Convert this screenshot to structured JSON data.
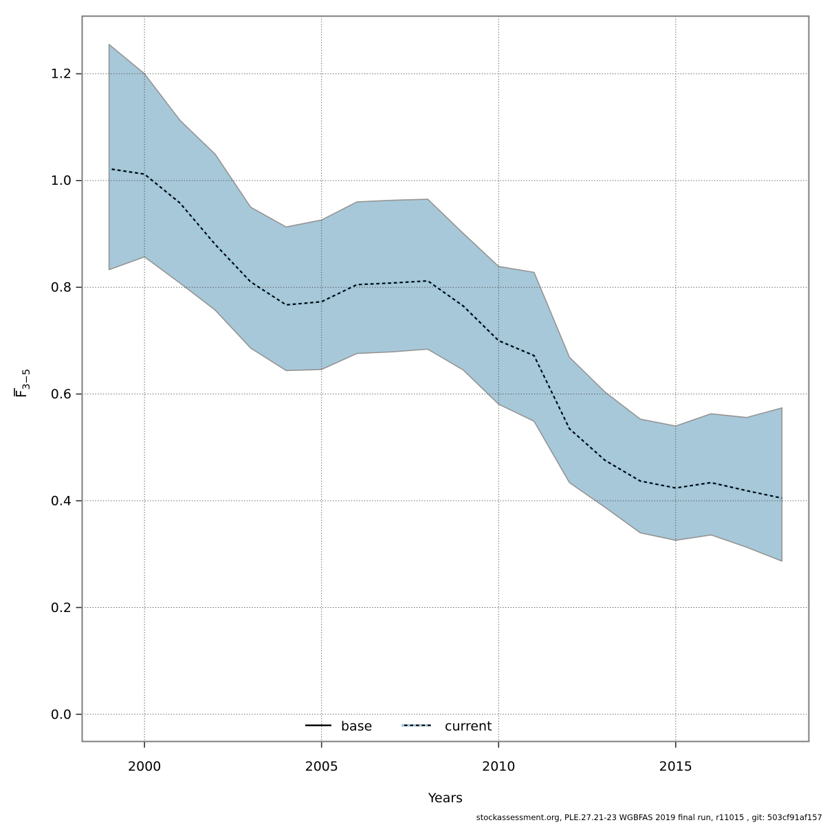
{
  "footer": "stockassessment.org, PLE.27.21-23 WGBFAS 2019 final run, r11015 , git: 503cf91af157",
  "chart_data": {
    "type": "line",
    "title": "",
    "xlabel": "Years",
    "ylabel": "F̅3−5",
    "ylabel_main": "F",
    "ylabel_sub": "3−5",
    "legend": [
      "base",
      "current"
    ],
    "legend_position": "bottom-center-inside",
    "grid": "dotted",
    "xlim": [
      1998.24,
      2018.76
    ],
    "ylim": [
      -0.051,
      1.308
    ],
    "xticks": [
      "2000",
      "2005",
      "2010",
      "2015"
    ],
    "xtick_values": [
      2000,
      2005,
      2010,
      2015
    ],
    "yticks": [
      "0.0",
      "0.2",
      "0.4",
      "0.6",
      "0.8",
      "1.0",
      "1.2"
    ],
    "ytick_values": [
      0.0,
      0.2,
      0.4,
      0.6,
      0.8,
      1.0,
      1.2
    ],
    "x": [
      1999,
      2000,
      2001,
      2002,
      2003,
      2004,
      2005,
      2006,
      2007,
      2008,
      2009,
      2010,
      2011,
      2012,
      2013,
      2014,
      2015,
      2016,
      2017,
      2018
    ],
    "series": [
      {
        "name": "base",
        "values": [
          1.022,
          1.012,
          0.958,
          0.88,
          0.81,
          0.767,
          0.773,
          0.805,
          0.808,
          0.812,
          0.765,
          0.7,
          0.672,
          0.535,
          0.476,
          0.437,
          0.424,
          0.434,
          0.419,
          0.405
        ]
      },
      {
        "name": "current",
        "values": [
          1.022,
          1.012,
          0.958,
          0.88,
          0.81,
          0.767,
          0.773,
          0.805,
          0.808,
          0.812,
          0.765,
          0.7,
          0.672,
          0.535,
          0.476,
          0.437,
          0.424,
          0.434,
          0.419,
          0.405
        ]
      }
    ],
    "band": {
      "name": "confidence-interval",
      "upper": [
        1.255,
        1.2,
        1.113,
        1.049,
        0.95,
        0.913,
        0.926,
        0.96,
        0.963,
        0.965,
        0.901,
        0.839,
        0.828,
        0.669,
        0.604,
        0.553,
        0.54,
        0.563,
        0.556,
        0.574
      ],
      "lower": [
        0.833,
        0.857,
        0.808,
        0.757,
        0.686,
        0.644,
        0.646,
        0.676,
        0.679,
        0.684,
        0.645,
        0.581,
        0.549,
        0.434,
        0.388,
        0.34,
        0.326,
        0.336,
        0.313,
        0.287
      ]
    },
    "colors": {
      "band_fill": "#a7c8d9",
      "band_border": "#949494",
      "base_line": "#000000",
      "current_line": "#92c9e6",
      "grid": "#444444",
      "plot_border": "#7e7e7e",
      "tick": "#2e2e2e"
    }
  }
}
